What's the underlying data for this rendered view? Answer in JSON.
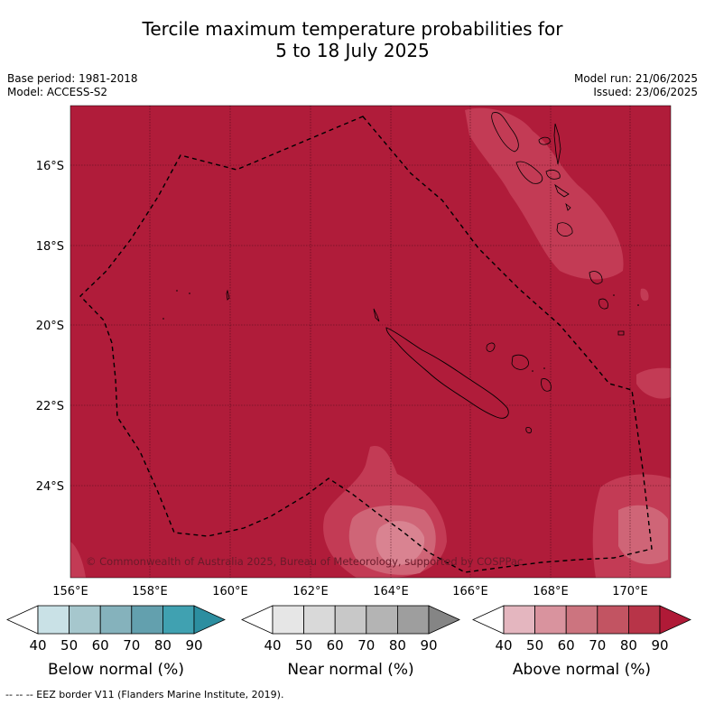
{
  "title_line1": "Tercile maximum temperature probabilities for",
  "title_line2": "5 to 18 July 2025",
  "base_period": "Base period: 1981-2018",
  "model": "Model: ACCESS-S2",
  "model_run": "Model run: 21/06/2025",
  "issued": "Issued: 23/06/2025",
  "copyright": "© Commonwealth of Australia 2025, Bureau of Meteorology, supported by COSPPac",
  "lat_labels": [
    "16°S",
    "18°S",
    "20°S",
    "22°S",
    "24°S"
  ],
  "lon_labels": [
    "156°E",
    "158°E",
    "160°E",
    "162°E",
    "164°E",
    "166°E",
    "168°E",
    "170°E"
  ],
  "colorbars": [
    {
      "title": "Below normal (%)",
      "ticks": [
        "40",
        "50",
        "60",
        "70",
        "80",
        "90"
      ],
      "colors": [
        "#ffffff",
        "#c9e1e6",
        "#a6c7cd",
        "#85b2bc",
        "#63a0ae",
        "#40a1b1",
        "#2c8ea0"
      ]
    },
    {
      "title": "Near normal (%)",
      "ticks": [
        "40",
        "50",
        "60",
        "70",
        "80",
        "90"
      ],
      "colors": [
        "#ffffff",
        "#e6e6e6",
        "#d9d9d9",
        "#c8c8c8",
        "#b4b4b4",
        "#9e9e9e",
        "#858585"
      ]
    },
    {
      "title": "Above normal (%)",
      "ticks": [
        "40",
        "50",
        "60",
        "70",
        "80",
        "90"
      ],
      "colors": [
        "#ffffff",
        "#e4b6bf",
        "#d9939e",
        "#cc747f",
        "#c25462",
        "#b83448",
        "#b01a37"
      ]
    }
  ],
  "footer": "--  --  -- EEZ border V11 (Flanders Marine Institute, 2019).",
  "map_colors": {
    "dominant": "#b01c3a",
    "lighter": "#c33b55",
    "light2": "#cf6577",
    "light3": "#d98391"
  }
}
